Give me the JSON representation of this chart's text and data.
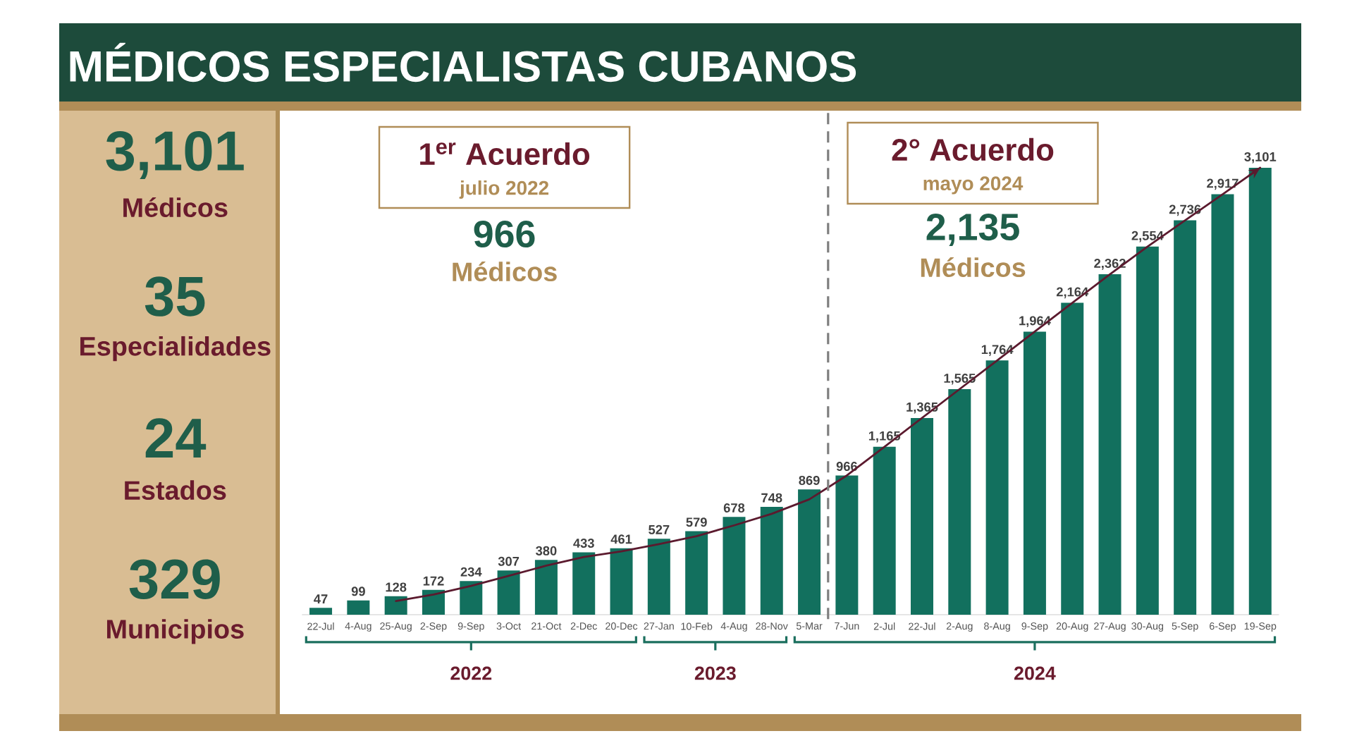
{
  "chart_data": [
    {
      "type": "other",
      "annotations": [
        "3,101",
        "Médicos",
        "35",
        "Especialidades",
        "24",
        "Estados",
        "329",
        "Municipios"
      ]
    },
    {
      "type": "bar",
      "title": "MÉDICOS ESPECIALISTAS CUBANOS",
      "categories": [
        "22-Jul",
        "4-Aug",
        "25-Aug",
        "2-Sep",
        "9-Sep",
        "3-Oct",
        "21-Oct",
        "2-Dec",
        "20-Dec",
        "27-Jan",
        "10-Feb",
        "4-Aug",
        "28-Nov",
        "5-Mar",
        "7-Jun",
        "2-Jul",
        "22-Jul",
        "2-Aug",
        "8-Aug",
        "9-Sep",
        "20-Aug",
        "27-Aug",
        "30-Aug",
        "5-Sep",
        "6-Sep",
        "19-Sep"
      ],
      "series": [
        {
          "type": "bar",
          "color": "#12705e",
          "values": [
            47,
            99,
            128,
            172,
            234,
            307,
            380,
            433,
            461,
            527,
            579,
            678,
            748,
            869,
            966,
            1165,
            1365,
            1565,
            1764,
            1964,
            2164,
            2362,
            2554,
            2736,
            2917,
            3101
          ],
          "value_labels": [
            "47",
            "99",
            "128",
            "172",
            "234",
            "307",
            "380",
            "433",
            "461",
            "527",
            "579",
            "678",
            "748",
            "869",
            "966",
            "1,165",
            "1,365",
            "1,565",
            "1,764",
            "1,964",
            "2,164",
            "2,362",
            "2,554",
            "2,736",
            "2,917",
            "3,101"
          ]
        },
        {
          "type": "line",
          "color": "#5b1a2e",
          "values": [
            null,
            null,
            95,
            140,
            200,
            270,
            340,
            400,
            440,
            490,
            545,
            620,
            700,
            800,
            966,
            1165,
            1365,
            1565,
            1764,
            1964,
            2164,
            2362,
            2554,
            2736,
            2917,
            3101
          ]
        }
      ],
      "annotations": [
        "1$^{er}$ Acuerdo",
        "julio 2022",
        "966",
        "Médicos",
        "2° Acuerdo",
        "mayo 2024",
        "2,135",
        "Médicos",
        "2022",
        "2023",
        "2024"
      ]
    }
  ]
}
